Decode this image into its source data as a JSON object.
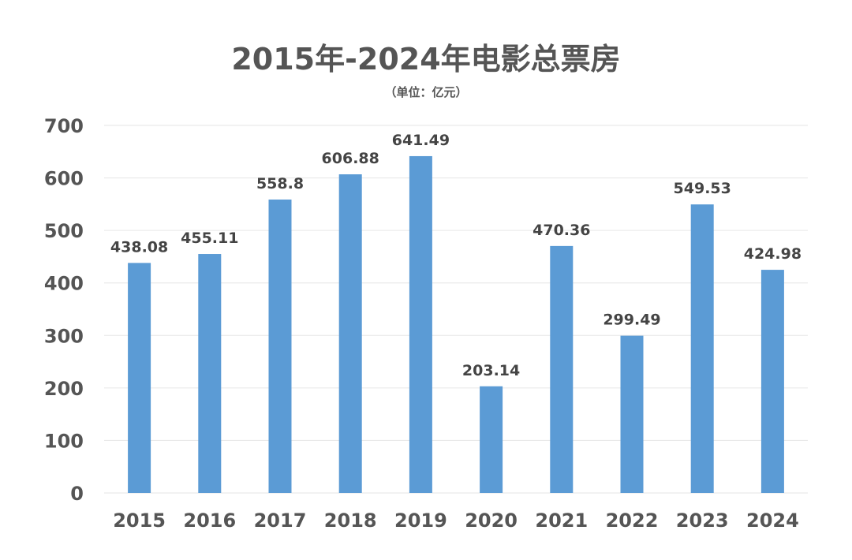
{
  "title": "2015年-2024年电影总票房",
  "subtitle": "（单位：亿元）",
  "colors": {
    "bar": "#5B9BD5",
    "text": "#555555",
    "grid": "#E6E6E6"
  },
  "chart_data": {
    "type": "bar",
    "title": "2015年-2024年电影总票房",
    "subtitle": "（单位：亿元）",
    "categories": [
      "2015",
      "2016",
      "2017",
      "2018",
      "2019",
      "2020",
      "2021",
      "2022",
      "2023",
      "2024"
    ],
    "values": [
      438.08,
      455.11,
      558.8,
      606.88,
      641.49,
      203.14,
      470.36,
      299.49,
      549.53,
      424.98
    ],
    "data_labels": [
      "438.08",
      "455.11",
      "558.8",
      "606.88",
      "641.49",
      "203.14",
      "470.36",
      "299.49",
      "549.53",
      "424.98"
    ],
    "yticks": [
      "0",
      "100",
      "200",
      "300",
      "400",
      "500",
      "600",
      "700"
    ],
    "ylim": [
      0,
      700
    ],
    "grid": true,
    "legend": "none"
  }
}
